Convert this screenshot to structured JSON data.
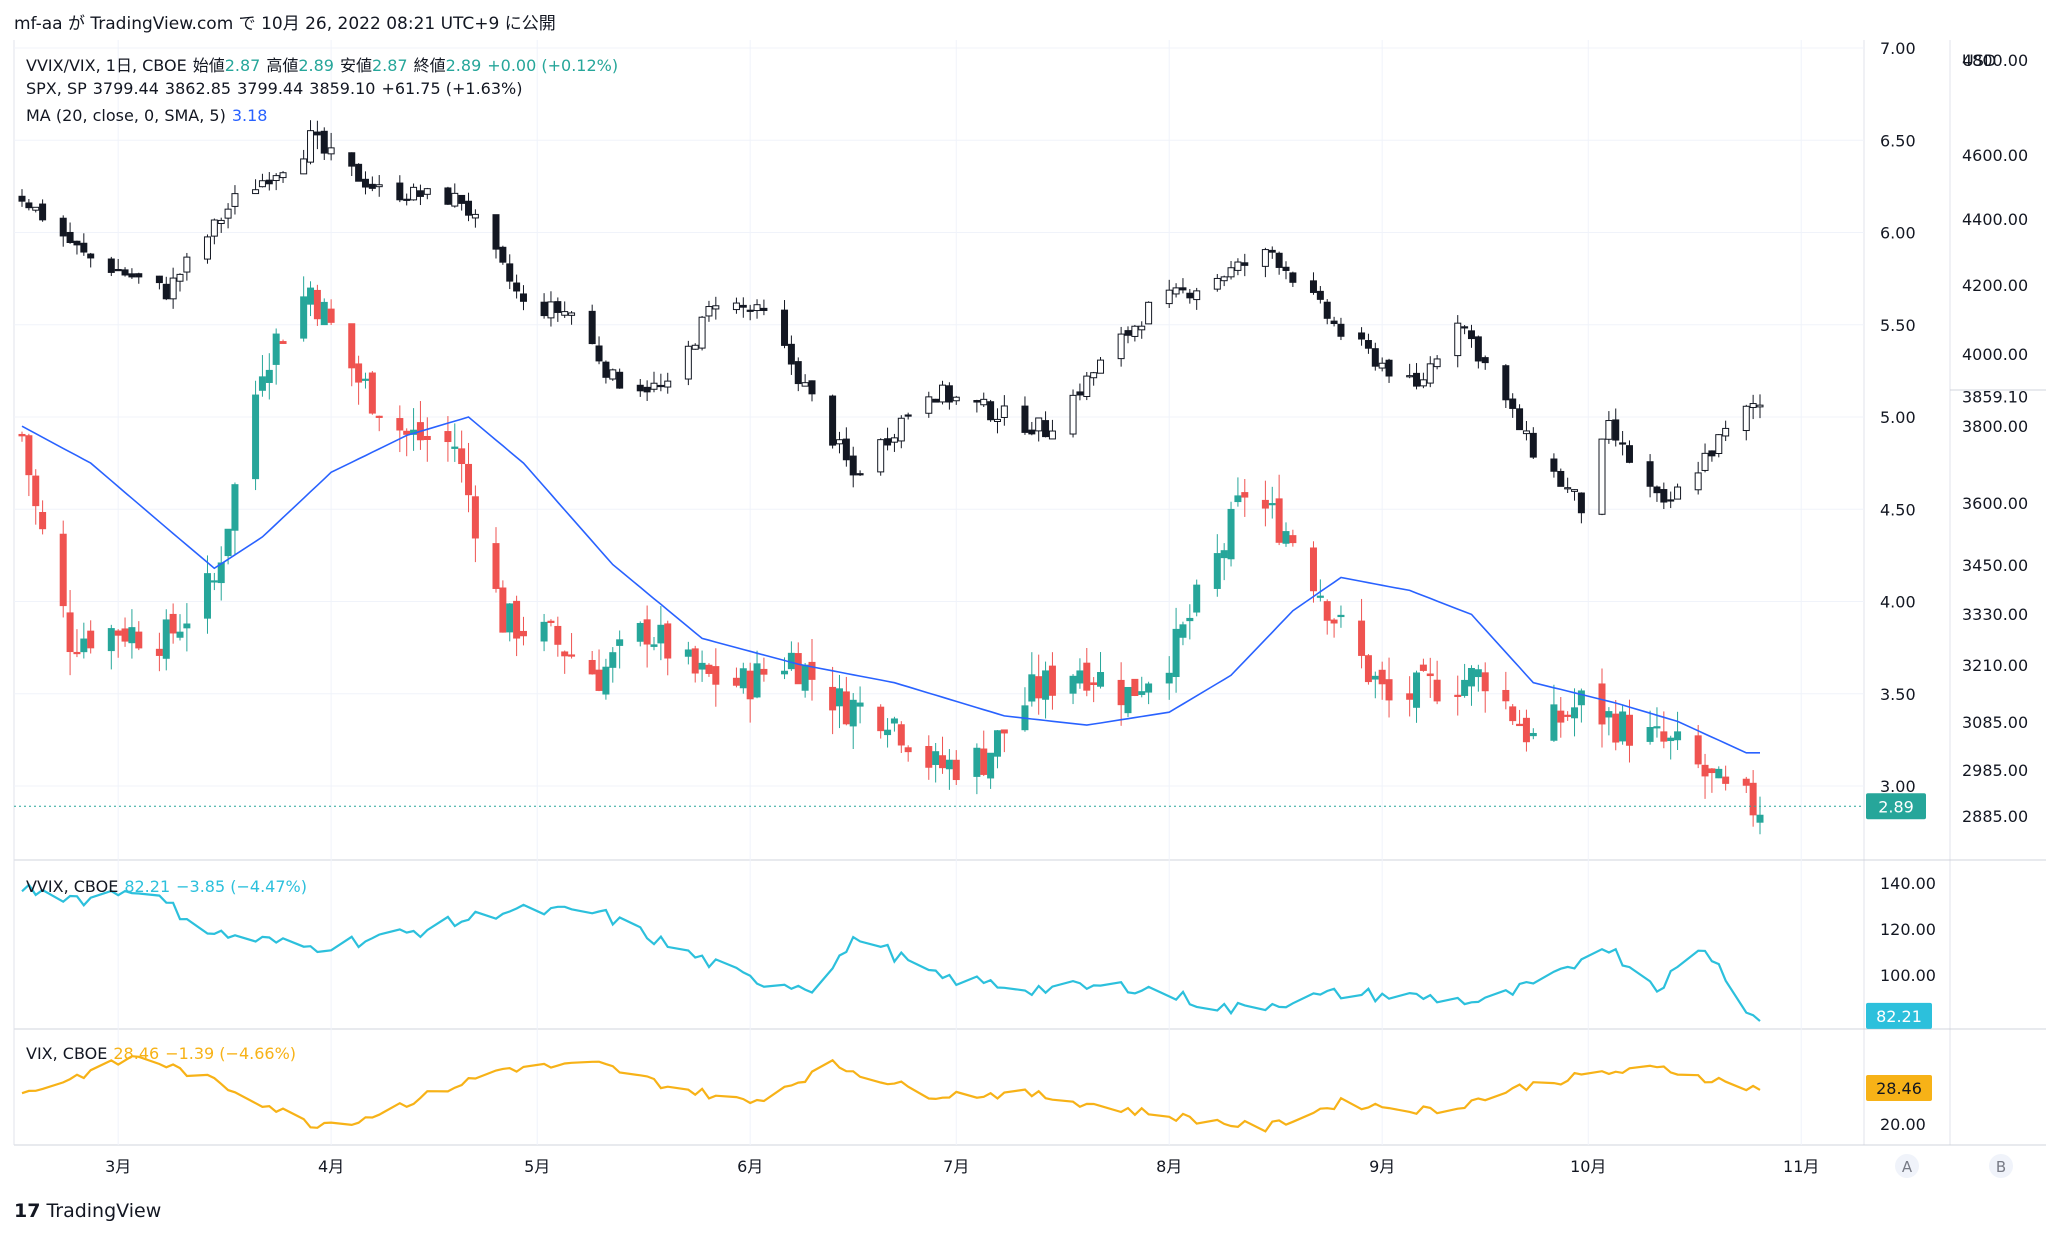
{
  "header": {
    "text": "mf-aa が TradingView.com で 10月 26, 2022 08:21 UTC+9 に公開"
  },
  "footer": {
    "brand": "TradingView"
  },
  "colors": {
    "up": "#26a69a",
    "down": "#ef5350",
    "ma": "#2962ff",
    "vvix": "#2cc0dc",
    "vix": "#f7b217",
    "spx": "#131722"
  },
  "legend": {
    "main": {
      "symbol": "VVIX/VIX, 1日, CBOE",
      "o_label": "始値",
      "o": "2.87",
      "h_label": "高値",
      "h": "2.89",
      "l_label": "安値",
      "l": "2.87",
      "c_label": "終値",
      "c": "2.89",
      "change": "+0.00 (+0.12%)"
    },
    "spx": {
      "symbol": "SPX, SP",
      "o": "3799.44",
      "h": "3862.85",
      "l": "3799.44",
      "c": "3859.10",
      "change": "+61.75 (+1.63%)"
    },
    "ma": {
      "label": "MA (20, close, 0, SMA, 5)",
      "value": "3.18"
    },
    "vvix": {
      "label": "VVIX, CBOE",
      "value": "82.21",
      "change": "−3.85 (−4.47%)"
    },
    "vix": {
      "label": "VIX, CBOE",
      "value": "28.46",
      "change": "−1.39 (−4.66%)"
    }
  },
  "axes": {
    "ratio_ticks": [
      "7.00",
      "6.50",
      "6.00",
      "5.50",
      "5.00",
      "4.50",
      "4.00",
      "3.50",
      "3.00"
    ],
    "spx_unit": "USD",
    "spx_ticks": [
      "4800.00",
      "4600.00",
      "4400.00",
      "4200.00",
      "4000.00",
      "3800.00",
      "3600.00",
      "3450.00",
      "3330.00",
      "3210.00",
      "3085.00",
      "2985.00",
      "2885.00"
    ],
    "spx_last": "3859.10",
    "ratio_last": "2.89",
    "vvix_ticks": [
      "140.00",
      "120.00",
      "100.00"
    ],
    "vvix_last": "82.21",
    "vix_ticks": [
      "20.00"
    ],
    "vix_last": "28.46",
    "months": [
      "3月",
      "4月",
      "5月",
      "6月",
      "7月",
      "8月",
      "9月",
      "10月",
      "11月"
    ],
    "corner_a": "A",
    "corner_b": "B"
  },
  "chart_data": {
    "type": "line",
    "title": "VVIX/VIX, 1日, CBOE",
    "x_range": [
      "2022-02-15",
      "2022-10-26"
    ],
    "series": [
      {
        "name": "VVIX/VIX",
        "style": "candles",
        "key_points": [
          {
            "x": "2022-02-15",
            "y": 4.9
          },
          {
            "x": "2022-02-17",
            "y": 4.5
          },
          {
            "x": "2022-02-22",
            "y": 3.8
          },
          {
            "x": "2022-03-01",
            "y": 3.85
          },
          {
            "x": "2022-03-08",
            "y": 3.8
          },
          {
            "x": "2022-03-15",
            "y": 4.1
          },
          {
            "x": "2022-03-22",
            "y": 5.3
          },
          {
            "x": "2022-03-29",
            "y": 5.7
          },
          {
            "x": "2022-04-05",
            "y": 5.2
          },
          {
            "x": "2022-04-12",
            "y": 4.9
          },
          {
            "x": "2022-04-19",
            "y": 4.85
          },
          {
            "x": "2022-04-26",
            "y": 3.9
          },
          {
            "x": "2022-05-03",
            "y": 3.8
          },
          {
            "x": "2022-05-10",
            "y": 3.6
          },
          {
            "x": "2022-05-17",
            "y": 3.85
          },
          {
            "x": "2022-05-24",
            "y": 3.6
          },
          {
            "x": "2022-05-31",
            "y": 3.55
          },
          {
            "x": "2022-06-07",
            "y": 3.7
          },
          {
            "x": "2022-06-14",
            "y": 3.45
          },
          {
            "x": "2022-06-21",
            "y": 3.4
          },
          {
            "x": "2022-06-28",
            "y": 3.1
          },
          {
            "x": "2022-07-05",
            "y": 3.15
          },
          {
            "x": "2022-07-12",
            "y": 3.5
          },
          {
            "x": "2022-07-19",
            "y": 3.65
          },
          {
            "x": "2022-07-26",
            "y": 3.5
          },
          {
            "x": "2022-08-02",
            "y": 3.75
          },
          {
            "x": "2022-08-09",
            "y": 4.3
          },
          {
            "x": "2022-08-12",
            "y": 4.6
          },
          {
            "x": "2022-08-19",
            "y": 4.35
          },
          {
            "x": "2022-08-26",
            "y": 3.85
          },
          {
            "x": "2022-09-02",
            "y": 3.45
          },
          {
            "x": "2022-09-09",
            "y": 3.55
          },
          {
            "x": "2022-09-16",
            "y": 3.6
          },
          {
            "x": "2022-09-23",
            "y": 3.25
          },
          {
            "x": "2022-09-30",
            "y": 3.45
          },
          {
            "x": "2022-10-07",
            "y": 3.3
          },
          {
            "x": "2022-10-14",
            "y": 3.2
          },
          {
            "x": "2022-10-21",
            "y": 2.95
          },
          {
            "x": "2022-10-25",
            "y": 2.89
          }
        ]
      },
      {
        "name": "MA (20, close, 0, SMA, 5)",
        "key_points": [
          {
            "x": "2022-02-15",
            "y": 4.95
          },
          {
            "x": "2022-02-25",
            "y": 4.75
          },
          {
            "x": "2022-03-08",
            "y": 4.4
          },
          {
            "x": "2022-03-15",
            "y": 4.18
          },
          {
            "x": "2022-03-22",
            "y": 4.35
          },
          {
            "x": "2022-04-01",
            "y": 4.7
          },
          {
            "x": "2022-04-12",
            "y": 4.9
          },
          {
            "x": "2022-04-21",
            "y": 5.0
          },
          {
            "x": "2022-04-29",
            "y": 4.75
          },
          {
            "x": "2022-05-12",
            "y": 4.2
          },
          {
            "x": "2022-05-25",
            "y": 3.8
          },
          {
            "x": "2022-06-08",
            "y": 3.66
          },
          {
            "x": "2022-06-22",
            "y": 3.56
          },
          {
            "x": "2022-07-08",
            "y": 3.38
          },
          {
            "x": "2022-07-20",
            "y": 3.33
          },
          {
            "x": "2022-08-01",
            "y": 3.4
          },
          {
            "x": "2022-08-10",
            "y": 3.6
          },
          {
            "x": "2022-08-19",
            "y": 3.95
          },
          {
            "x": "2022-08-26",
            "y": 4.13
          },
          {
            "x": "2022-09-05",
            "y": 4.06
          },
          {
            "x": "2022-09-14",
            "y": 3.93
          },
          {
            "x": "2022-09-23",
            "y": 3.56
          },
          {
            "x": "2022-10-05",
            "y": 3.45
          },
          {
            "x": "2022-10-14",
            "y": 3.35
          },
          {
            "x": "2022-10-24",
            "y": 3.18
          }
        ]
      },
      {
        "name": "SPX, SP",
        "style": "candles",
        "key_points": [
          {
            "x": "2022-02-15",
            "y": 4470
          },
          {
            "x": "2022-02-24",
            "y": 4290
          },
          {
            "x": "2022-03-08",
            "y": 4180
          },
          {
            "x": "2022-03-18",
            "y": 4460
          },
          {
            "x": "2022-03-29",
            "y": 4630
          },
          {
            "x": "2022-04-08",
            "y": 4490
          },
          {
            "x": "2022-04-20",
            "y": 4460
          },
          {
            "x": "2022-04-29",
            "y": 4140
          },
          {
            "x": "2022-05-06",
            "y": 4120
          },
          {
            "x": "2022-05-12",
            "y": 3930
          },
          {
            "x": "2022-05-20",
            "y": 3900
          },
          {
            "x": "2022-05-27",
            "y": 4160
          },
          {
            "x": "2022-06-03",
            "y": 4110
          },
          {
            "x": "2022-06-16",
            "y": 3670
          },
          {
            "x": "2022-06-27",
            "y": 3900
          },
          {
            "x": "2022-07-14",
            "y": 3790
          },
          {
            "x": "2022-07-29",
            "y": 4130
          },
          {
            "x": "2022-08-16",
            "y": 4300
          },
          {
            "x": "2022-08-26",
            "y": 4060
          },
          {
            "x": "2022-09-06",
            "y": 3900
          },
          {
            "x": "2022-09-12",
            "y": 4110
          },
          {
            "x": "2022-09-22",
            "y": 3760
          },
          {
            "x": "2022-09-30",
            "y": 3590
          },
          {
            "x": "2022-10-04",
            "y": 3790
          },
          {
            "x": "2022-10-12",
            "y": 3580
          },
          {
            "x": "2022-10-18",
            "y": 3720
          },
          {
            "x": "2022-10-25",
            "y": 3859.1
          }
        ]
      },
      {
        "name": "VVIX, CBOE",
        "key_points": [
          {
            "x": "2022-02-15",
            "y": 138
          },
          {
            "x": "2022-02-24",
            "y": 133
          },
          {
            "x": "2022-03-04",
            "y": 138
          },
          {
            "x": "2022-03-15",
            "y": 118
          },
          {
            "x": "2022-03-29",
            "y": 112
          },
          {
            "x": "2022-04-12",
            "y": 118
          },
          {
            "x": "2022-04-26",
            "y": 128
          },
          {
            "x": "2022-05-10",
            "y": 127
          },
          {
            "x": "2022-05-20",
            "y": 113
          },
          {
            "x": "2022-06-01",
            "y": 98
          },
          {
            "x": "2022-06-10",
            "y": 95
          },
          {
            "x": "2022-06-17",
            "y": 117
          },
          {
            "x": "2022-06-28",
            "y": 99
          },
          {
            "x": "2022-07-12",
            "y": 94
          },
          {
            "x": "2022-07-27",
            "y": 95
          },
          {
            "x": "2022-08-10",
            "y": 85
          },
          {
            "x": "2022-08-26",
            "y": 92
          },
          {
            "x": "2022-09-09",
            "y": 90
          },
          {
            "x": "2022-09-16",
            "y": 88
          },
          {
            "x": "2022-09-27",
            "y": 100
          },
          {
            "x": "2022-10-03",
            "y": 114
          },
          {
            "x": "2022-10-11",
            "y": 95
          },
          {
            "x": "2022-10-18",
            "y": 112
          },
          {
            "x": "2022-10-25",
            "y": 82.21
          }
        ]
      },
      {
        "name": "VIX, CBOE",
        "key_points": [
          {
            "x": "2022-02-15",
            "y": 27
          },
          {
            "x": "2022-03-04",
            "y": 36
          },
          {
            "x": "2022-03-15",
            "y": 30
          },
          {
            "x": "2022-03-29",
            "y": 20
          },
          {
            "x": "2022-04-05",
            "y": 21
          },
          {
            "x": "2022-04-26",
            "y": 33
          },
          {
            "x": "2022-05-10",
            "y": 34
          },
          {
            "x": "2022-05-20",
            "y": 29
          },
          {
            "x": "2022-06-01",
            "y": 25
          },
          {
            "x": "2022-06-13",
            "y": 34
          },
          {
            "x": "2022-06-27",
            "y": 27
          },
          {
            "x": "2022-07-12",
            "y": 27
          },
          {
            "x": "2022-07-27",
            "y": 23
          },
          {
            "x": "2022-08-15",
            "y": 19
          },
          {
            "x": "2022-08-26",
            "y": 25
          },
          {
            "x": "2022-09-09",
            "y": 23
          },
          {
            "x": "2022-09-22",
            "y": 29
          },
          {
            "x": "2022-10-03",
            "y": 32
          },
          {
            "x": "2022-10-12",
            "y": 33
          },
          {
            "x": "2022-10-25",
            "y": 28.46
          }
        ]
      }
    ]
  }
}
